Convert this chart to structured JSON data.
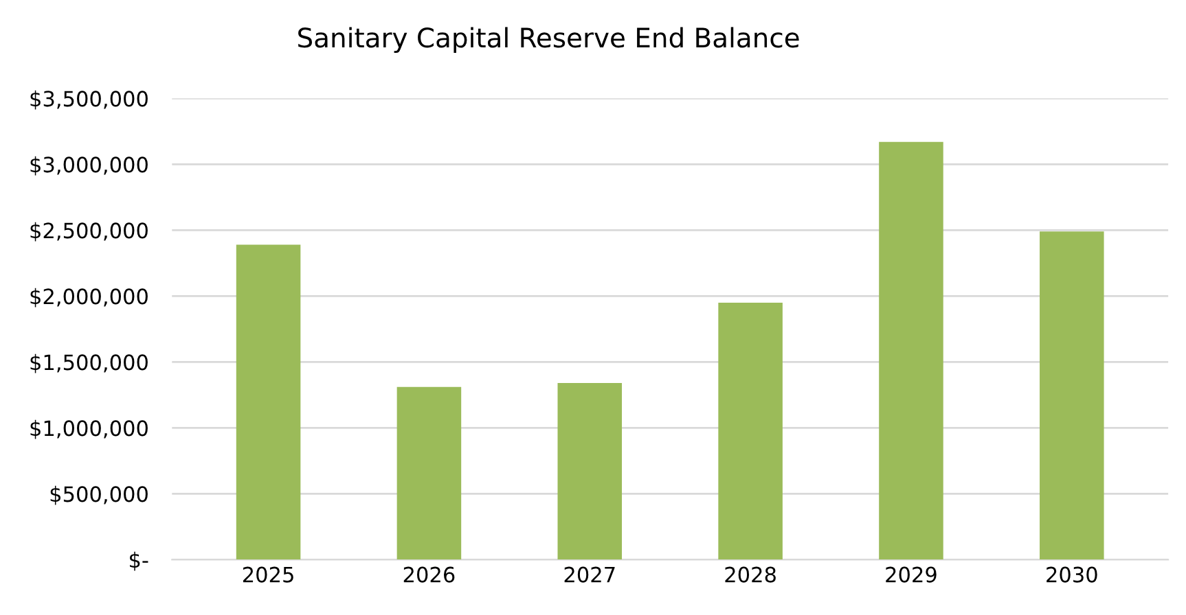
{
  "chart_data": {
    "type": "bar",
    "title": "Sanitary Capital Reserve End Balance",
    "categories": [
      "2025",
      "2026",
      "2027",
      "2028",
      "2029",
      "2030"
    ],
    "values": [
      2390000,
      1310000,
      1340000,
      1950000,
      3170000,
      2490000
    ],
    "color": "#9bbb59",
    "ylim": [
      0,
      3500000
    ],
    "yticks": [
      {
        "value": 0,
        "label": "$-"
      },
      {
        "value": 500000,
        "label": "$500,000"
      },
      {
        "value": 1000000,
        "label": "$1,000,000"
      },
      {
        "value": 1500000,
        "label": "$1,500,000"
      },
      {
        "value": 2000000,
        "label": "$2,000,000"
      },
      {
        "value": 2500000,
        "label": "$2,500,000"
      },
      {
        "value": 3000000,
        "label": "$3,000,000"
      },
      {
        "value": 3500000,
        "label": "$3,500,000"
      }
    ],
    "grid": "y"
  }
}
